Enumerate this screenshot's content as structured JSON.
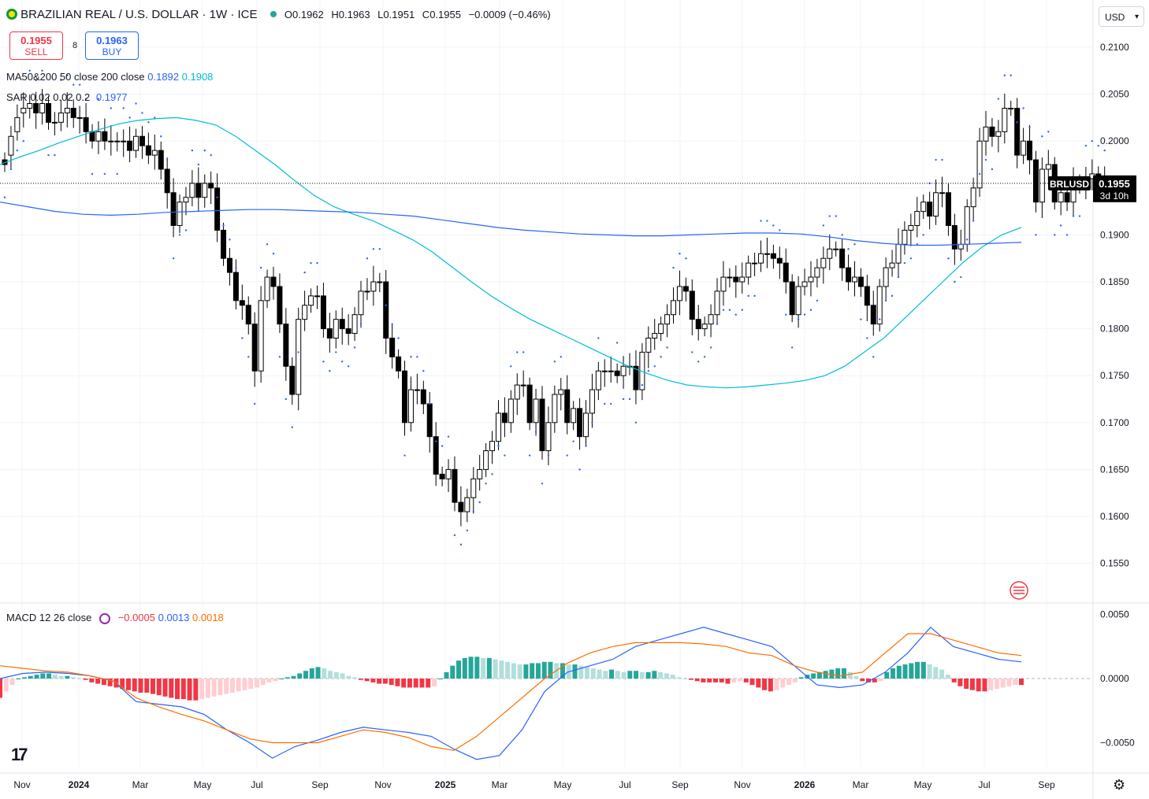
{
  "header": {
    "symbol_title": "BRAZILIAN REAL / U.S. DOLLAR · 1W · ICE",
    "ohlc": [
      {
        "label": "O",
        "value": "0.1962"
      },
      {
        "label": "H",
        "value": "0.1963"
      },
      {
        "label": "L",
        "value": "0.1951"
      },
      {
        "label": "C",
        "value": "0.1955"
      }
    ],
    "change": "−0.0009 (−0.46%)"
  },
  "trade": {
    "sell_price": "0.1955",
    "sell_label": "SELL",
    "buy_price": "0.1963",
    "buy_label": "BUY",
    "spread": "8"
  },
  "indicators": {
    "ma": {
      "label": "MA50&200 50 close 200 close",
      "v1": "0.1892",
      "v2": "0.1908",
      "c1": "#2962ff",
      "c2": "#00bcd4"
    },
    "sar": {
      "label": "SAR 0.02 0.02 0.2",
      "v": "0.1977",
      "c": "#2962ff"
    },
    "macd": {
      "label": "MACD 12 26 close",
      "hist": "−0.0005",
      "macd": "0.0013",
      "signal": "0.0018",
      "c_hist": "#f23645",
      "c_macd": "#2962ff",
      "c_signal": "#ff6d00"
    }
  },
  "currency_select": "USD",
  "price_tag": {
    "symbol": "BRLUSD",
    "price": "0.1955",
    "countdown": "3d 10h"
  },
  "colors": {
    "up_body": "#ffffff",
    "down_body": "#000000",
    "hist_pos_up": "#26a69a",
    "hist_pos_down": "#b2dfdb",
    "hist_neg_down": "#f23645",
    "hist_neg_up": "#ffcdd2",
    "grid": "#f0f3fa"
  },
  "icons": {
    "flag": "brazil-flag-icon",
    "dot": "live-dot-icon",
    "settings": "gear-icon",
    "logo": "tradingview-logo",
    "macd": "macd-icon"
  },
  "chart_data": [
    {
      "type": "candlestick",
      "title": "BRAZILIAN REAL / U.S. DOLLAR · 1W · ICE",
      "ylim": [
        0.153,
        0.2125
      ],
      "y_ticks": [
        "0.1550",
        "0.1600",
        "0.1650",
        "0.1700",
        "0.1750",
        "0.1800",
        "0.1850",
        "0.1900",
        "0.1950",
        "0.2000",
        "0.2050",
        "0.2100"
      ],
      "x_ticks": [
        "Nov",
        "2024",
        "Mar",
        "May",
        "Jul",
        "Sep",
        "Nov",
        "2025",
        "Mar",
        "May",
        "Jul",
        "Sep",
        "Nov",
        "2026",
        "Mar",
        "May",
        "Jul",
        "Sep"
      ],
      "grid": true,
      "candles_close": [
        0.1975,
        0.2005,
        0.2025,
        0.2035,
        0.204,
        0.203,
        0.204,
        0.202,
        0.202,
        0.203,
        0.2035,
        0.2025,
        0.2025,
        0.201,
        0.2,
        0.201,
        0.2,
        0.2,
        0.2,
        0.2,
        0.199,
        0.2005,
        0.1995,
        0.1985,
        0.199,
        0.197,
        0.1945,
        0.191,
        0.1935,
        0.194,
        0.1955,
        0.194,
        0.1955,
        0.195,
        0.1905,
        0.1875,
        0.186,
        0.183,
        0.1825,
        0.1805,
        0.1755,
        0.183,
        0.1855,
        0.1845,
        0.1805,
        0.176,
        0.173,
        0.181,
        0.1825,
        0.1835,
        0.1835,
        0.18,
        0.179,
        0.181,
        0.18,
        0.1795,
        0.1815,
        0.184,
        0.184,
        0.185,
        0.185,
        0.179,
        0.177,
        0.1755,
        0.17,
        0.1735,
        0.1735,
        0.172,
        0.1685,
        0.1645,
        0.164,
        0.165,
        0.1615,
        0.1605,
        0.162,
        0.164,
        0.165,
        0.167,
        0.168,
        0.171,
        0.17,
        0.1725,
        0.174,
        0.174,
        0.17,
        0.1725,
        0.167,
        0.17,
        0.173,
        0.1735,
        0.17,
        0.1715,
        0.1685,
        0.171,
        0.1735,
        0.1755,
        0.1755,
        0.1755,
        0.175,
        0.176,
        0.176,
        0.1735,
        0.1775,
        0.179,
        0.1795,
        0.1805,
        0.1815,
        0.183,
        0.1845,
        0.184,
        0.181,
        0.18,
        0.1805,
        0.1815,
        0.184,
        0.1855,
        0.1855,
        0.185,
        0.1855,
        0.187,
        0.187,
        0.188,
        0.188,
        0.1875,
        0.187,
        0.185,
        0.1815,
        0.1845,
        0.185,
        0.1855,
        0.1865,
        0.1875,
        0.1885,
        0.1885,
        0.1865,
        0.185,
        0.1855,
        0.1845,
        0.1825,
        0.1805,
        0.1845,
        0.1865,
        0.187,
        0.189,
        0.1905,
        0.191,
        0.1925,
        0.1935,
        0.192,
        0.1945,
        0.1945,
        0.191,
        0.1885,
        0.189,
        0.193,
        0.195,
        0.2,
        0.2015,
        0.2005,
        0.201,
        0.2035,
        0.2035,
        0.1985,
        0.2,
        0.198,
        0.1935,
        0.197,
        0.1975,
        0.1935,
        0.1945,
        0.1935,
        0.1955,
        0.1955,
        0.196,
        0.1965,
        0.196,
        0.1955
      ],
      "candles_open": [
        0.198,
        0.1985,
        0.201,
        0.203,
        0.2035,
        0.204,
        0.203,
        0.204,
        0.202,
        0.202,
        0.203,
        0.2035,
        0.2025,
        0.2025,
        0.201,
        0.2,
        0.201,
        0.2,
        0.2,
        0.2,
        0.2,
        0.199,
        0.2005,
        0.1995,
        0.1985,
        0.199,
        0.197,
        0.1945,
        0.191,
        0.1935,
        0.194,
        0.1955,
        0.194,
        0.1955,
        0.195,
        0.1905,
        0.1875,
        0.186,
        0.183,
        0.1825,
        0.1805,
        0.1755,
        0.183,
        0.1855,
        0.1845,
        0.1805,
        0.176,
        0.173,
        0.181,
        0.1825,
        0.1835,
        0.1835,
        0.18,
        0.179,
        0.181,
        0.18,
        0.1795,
        0.1815,
        0.184,
        0.184,
        0.185,
        0.185,
        0.179,
        0.177,
        0.1755,
        0.17,
        0.1735,
        0.1735,
        0.172,
        0.1685,
        0.1645,
        0.164,
        0.165,
        0.1615,
        0.1605,
        0.162,
        0.164,
        0.165,
        0.167,
        0.168,
        0.171,
        0.17,
        0.1725,
        0.174,
        0.174,
        0.17,
        0.1725,
        0.167,
        0.17,
        0.173,
        0.1735,
        0.17,
        0.1715,
        0.1685,
        0.171,
        0.1735,
        0.1755,
        0.1755,
        0.1755,
        0.175,
        0.176,
        0.176,
        0.1735,
        0.1775,
        0.179,
        0.1795,
        0.1805,
        0.1815,
        0.183,
        0.1845,
        0.184,
        0.181,
        0.18,
        0.1805,
        0.1815,
        0.184,
        0.1855,
        0.1855,
        0.185,
        0.1855,
        0.187,
        0.187,
        0.188,
        0.188,
        0.1875,
        0.187,
        0.185,
        0.1815,
        0.1845,
        0.185,
        0.1855,
        0.1865,
        0.1875,
        0.1885,
        0.1885,
        0.1865,
        0.185,
        0.1855,
        0.1845,
        0.1825,
        0.1805,
        0.1845,
        0.1865,
        0.187,
        0.189,
        0.1905,
        0.191,
        0.1925,
        0.1935,
        0.192,
        0.1945,
        0.1945,
        0.191,
        0.1885,
        0.189,
        0.193,
        0.195,
        0.2,
        0.2015,
        0.2005,
        0.201,
        0.2035,
        0.2035,
        0.1985,
        0.2,
        0.198,
        0.1935,
        0.197,
        0.1975,
        0.1935,
        0.1945,
        0.1935,
        0.1955,
        0.1955,
        0.196,
        0.1965,
        0.1962
      ],
      "series": [
        {
          "name": "MA 50",
          "color": "#00bcd4",
          "values": [
            0.1975,
            0.1983,
            0.199,
            0.1998,
            0.2005,
            0.2012,
            0.2018,
            0.2022,
            0.2024,
            0.2025,
            0.2022,
            0.2017,
            0.2005,
            0.199,
            0.1975,
            0.1958,
            0.1942,
            0.193,
            0.1922,
            0.1915,
            0.1905,
            0.1895,
            0.1882,
            0.1866,
            0.185,
            0.1835,
            0.1822,
            0.181,
            0.18,
            0.179,
            0.178,
            0.177,
            0.176,
            0.1752,
            0.1745,
            0.174,
            0.1738,
            0.1737,
            0.1738,
            0.174,
            0.1742,
            0.1745,
            0.175,
            0.176,
            0.1775,
            0.179,
            0.181,
            0.183,
            0.185,
            0.187,
            0.1887,
            0.19,
            0.1908
          ]
        },
        {
          "name": "MA 200",
          "color": "#2962ff",
          "values": [
            0.1935,
            0.193,
            0.1925,
            0.1922,
            0.1921,
            0.1922,
            0.1924,
            0.1925,
            0.1926,
            0.1927,
            0.1927,
            0.1926,
            0.1925,
            0.1924,
            0.1922,
            0.192,
            0.1916,
            0.1912,
            0.1908,
            0.1905,
            0.1903,
            0.1901,
            0.19,
            0.1899,
            0.1899,
            0.19,
            0.1901,
            0.1902,
            0.1902,
            0.1901,
            0.1898,
            0.1894,
            0.1891,
            0.1889,
            0.1889,
            0.189,
            0.1891,
            0.1892
          ]
        }
      ]
    },
    {
      "type": "bar",
      "title": "MACD 12 26 close",
      "ylim": [
        -0.0072,
        0.006
      ],
      "y_ticks": [
        "0.0050",
        "0.0000",
        "−0.0050"
      ],
      "series": [
        {
          "name": "Histogram",
          "values": [
            -0.0015,
            -0.001,
            -0.0005,
            0.0,
            0.0001,
            0.0002,
            0.0003,
            0.0004,
            0.0004,
            0.0003,
            0.0002,
            0.0002,
            0.0001,
            0.0,
            -0.0001,
            -0.0003,
            -0.0004,
            -0.0005,
            -0.0006,
            -0.0007,
            -0.0008,
            -0.0009,
            -0.001,
            -0.0011,
            -0.0011,
            -0.0012,
            -0.0013,
            -0.0014,
            -0.0015,
            -0.0016,
            -0.0016,
            -0.0017,
            -0.0017,
            -0.0016,
            -0.0015,
            -0.0014,
            -0.0013,
            -0.0012,
            -0.0011,
            -0.001,
            -0.0009,
            -0.0008,
            -0.0007,
            -0.0005,
            -0.0003,
            -0.0002,
            0.0,
            0.0001,
            0.0002,
            0.0004,
            0.0006,
            0.0008,
            0.0009,
            0.0008,
            0.0006,
            0.0005,
            0.0004,
            0.0002,
            0.0001,
            -0.0001,
            -0.0002,
            -0.0003,
            -0.0004,
            -0.0004,
            -0.0005,
            -0.0006,
            -0.0007,
            -0.0007,
            -0.0007,
            -0.0007,
            -0.0007,
            -0.0006,
            0.0,
            0.0005,
            0.001,
            0.0014,
            0.0016,
            0.0017,
            0.0017,
            0.0016,
            0.0016,
            0.0015,
            0.0014,
            0.0013,
            0.0012,
            0.0011,
            0.0011,
            0.0012,
            0.0012,
            0.0013,
            0.0013,
            0.0012,
            0.0012,
            0.0011,
            0.0011,
            0.001,
            0.0009,
            0.0008,
            0.0007,
            0.0006,
            0.0007,
            0.0006,
            0.0005,
            0.0006,
            0.0006,
            0.0005,
            0.0005,
            0.0006,
            0.0005,
            0.0004,
            0.0003,
            0.0001,
            0.0,
            -0.0001,
            -0.0002,
            -0.0003,
            -0.0003,
            -0.0003,
            -0.0003,
            -0.0004,
            -0.0003,
            -0.0002,
            -0.0003,
            -0.0005,
            -0.0007,
            -0.0009,
            -0.001,
            -0.0009,
            -0.0007,
            -0.0005,
            -0.0003,
            0.0001,
            0.0003,
            0.0004,
            0.0005,
            0.0006,
            0.0007,
            0.0008,
            0.0008,
            0.0005,
            0.0002,
            -0.0002,
            -0.0003,
            -0.0003,
            -0.0002,
            0.0005,
            0.0008,
            0.001,
            0.0011,
            0.0012,
            0.0013,
            0.0013,
            0.0011,
            0.0009,
            0.0007,
            0.0003,
            -0.0003,
            -0.0006,
            -0.0008,
            -0.0009,
            -0.001,
            -0.001,
            -0.0009,
            -0.0008,
            -0.0007,
            -0.0006,
            -0.0005,
            -0.0005
          ]
        },
        {
          "name": "MACD",
          "color": "#2962ff",
          "values": [
            0.0,
            0.0004,
            0.0005,
            0.0004,
            0.0002,
            -0.0002,
            -0.0018,
            -0.002,
            -0.0022,
            -0.0028,
            -0.004,
            -0.005,
            -0.0062,
            -0.0053,
            -0.0048,
            -0.0042,
            -0.0038,
            -0.004,
            -0.0042,
            -0.0045,
            -0.0055,
            -0.0063,
            -0.006,
            -0.004,
            -0.001,
            0.0005,
            0.001,
            0.0015,
            0.0025,
            0.003,
            0.0035,
            0.004,
            0.0035,
            0.003,
            0.0025,
            0.001,
            -0.0005,
            -0.0007,
            -0.0005,
            0.0005,
            0.002,
            0.004,
            0.0025,
            0.002,
            0.0015,
            0.0013
          ]
        },
        {
          "name": "Signal",
          "color": "#ff6d00",
          "values": [
            0.001,
            0.0008,
            0.0006,
            0.0005,
            0.0002,
            -0.0002,
            -0.0015,
            -0.0022,
            -0.0028,
            -0.0033,
            -0.004,
            -0.0047,
            -0.005,
            -0.005,
            -0.005,
            -0.0045,
            -0.004,
            -0.0042,
            -0.0046,
            -0.0053,
            -0.0056,
            -0.0045,
            -0.003,
            -0.0015,
            0.0,
            0.0012,
            0.002,
            0.0025,
            0.0028,
            0.0028,
            0.0028,
            0.0027,
            0.0025,
            0.002,
            0.0018,
            0.001,
            0.0005,
            0.0002,
            0.0005,
            0.002,
            0.0035,
            0.0035,
            0.003,
            0.0025,
            0.002,
            0.0018
          ]
        }
      ]
    }
  ]
}
